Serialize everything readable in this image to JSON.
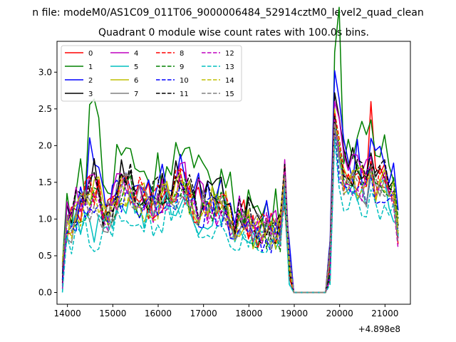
{
  "figure": {
    "suptitle": "n file: modeM0/AS1C09_011T06_9000006484_52914cztM0_level2_quad_clean",
    "title": "Quadrant 0 module wise count rates with 100.0s bins.",
    "x_offset_label": "+4.898e8"
  },
  "chart_data": {
    "type": "line",
    "title": "Quadrant 0 module wise count rates with 100.0s bins.",
    "xlabel": "",
    "ylabel": "",
    "x_offset": 489800000,
    "xlim": [
      13770,
      21560
    ],
    "ylim": [
      -0.16,
      3.42
    ],
    "xticks": [
      14000,
      15000,
      16000,
      17000,
      18000,
      19000,
      20000,
      21000
    ],
    "yticks": [
      0.0,
      0.5,
      1.0,
      1.5,
      2.0,
      2.5,
      3.0
    ],
    "xtick_labels": [
      "14000",
      "15000",
      "16000",
      "17000",
      "18000",
      "19000",
      "20000",
      "21000"
    ],
    "ytick_labels": [
      "0.0",
      "0.5",
      "1.0",
      "1.5",
      "2.0",
      "2.5",
      "3.0"
    ],
    "legend": {
      "placement": "upper-left",
      "columns": 4
    },
    "grid": false,
    "series": [
      {
        "name": "0",
        "color": "#ff0000",
        "style": "solid",
        "peaks": [
          2.05,
          2.2,
          2.6
        ],
        "scale": 1.0
      },
      {
        "name": "1",
        "color": "#008000",
        "style": "solid",
        "peaks": [
          2.57,
          3.27,
          2.35
        ],
        "scale": 1.3
      },
      {
        "name": "2",
        "color": "#0000ff",
        "style": "solid",
        "peaks": [
          2.22,
          3.02,
          2.1
        ],
        "scale": 1.12
      },
      {
        "name": "3",
        "color": "#000000",
        "style": "solid",
        "peaks": [
          1.95,
          2.72,
          1.9
        ],
        "scale": 1.07
      },
      {
        "name": "4",
        "color": "#bf00bf",
        "style": "solid",
        "peaks": [
          2.0,
          2.6,
          1.85
        ],
        "scale": 1.05
      },
      {
        "name": "5",
        "color": "#00bfbf",
        "style": "solid",
        "peaks": [
          1.3,
          2.3,
          1.6
        ],
        "scale": 0.85
      },
      {
        "name": "6",
        "color": "#bfbf00",
        "style": "solid",
        "peaks": [
          1.85,
          2.5,
          1.7
        ],
        "scale": 0.98
      },
      {
        "name": "7",
        "color": "#808080",
        "style": "solid",
        "peaks": [
          1.75,
          2.4,
          1.75
        ],
        "scale": 0.96
      },
      {
        "name": "8",
        "color": "#ff0000",
        "style": "dashed",
        "peaks": [
          1.9,
          2.45,
          1.8
        ],
        "scale": 1.0
      },
      {
        "name": "9",
        "color": "#008000",
        "style": "dashed",
        "peaks": [
          1.85,
          2.35,
          1.7
        ],
        "scale": 0.95
      },
      {
        "name": "10",
        "color": "#0000ff",
        "style": "dashed",
        "peaks": [
          1.7,
          2.25,
          1.6
        ],
        "scale": 0.92
      },
      {
        "name": "11",
        "color": "#000000",
        "style": "dashed",
        "peaks": [
          1.8,
          2.4,
          1.75
        ],
        "scale": 1.02
      },
      {
        "name": "12",
        "color": "#bf00bf",
        "style": "dashed",
        "peaks": [
          1.8,
          2.35,
          1.7
        ],
        "scale": 0.97
      },
      {
        "name": "13",
        "color": "#00bfbf",
        "style": "dashed",
        "peaks": [
          1.2,
          2.1,
          1.4
        ],
        "scale": 0.75
      },
      {
        "name": "14",
        "color": "#bfbf00",
        "style": "dashed",
        "peaks": [
          1.75,
          2.3,
          1.65
        ],
        "scale": 0.93
      },
      {
        "name": "15",
        "color": "#808080",
        "style": "dashed",
        "peaks": [
          1.7,
          2.3,
          1.65
        ],
        "scale": 0.94
      }
    ]
  }
}
